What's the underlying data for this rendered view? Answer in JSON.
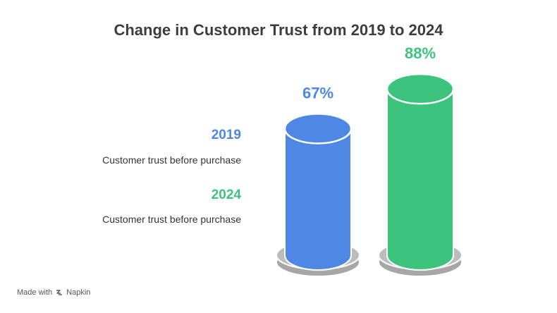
{
  "chart_data": {
    "type": "bar",
    "title": "Change in Customer Trust from 2019 to 2024",
    "categories": [
      "2019",
      "2024"
    ],
    "values": [
      67,
      88
    ],
    "value_labels": [
      "67%",
      "88%"
    ],
    "descriptions": [
      "Customer trust before purchase",
      "Customer trust before purchase"
    ],
    "colors": [
      "#4f87e5",
      "#3cc47c"
    ],
    "ylim": [
      0,
      100
    ],
    "xlabel": "",
    "ylabel": ""
  },
  "footer": {
    "made_with": "Made with",
    "brand": "Napkin"
  }
}
